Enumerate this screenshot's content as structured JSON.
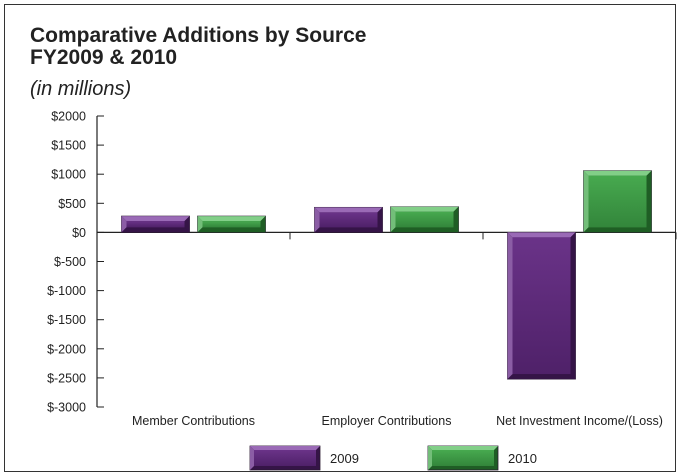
{
  "chart_data": {
    "type": "bar",
    "title": "Comparative Additions by Source",
    "title_line2": "FY2009 & 2010",
    "subtitle": "(in millions)",
    "categories": [
      "Member Contributions",
      "Employer Contributions",
      "Net Investment Income/(Loss)"
    ],
    "series": [
      {
        "name": "2009",
        "values": [
          280,
          430,
          -2520
        ],
        "color": "#5c2a7a"
      },
      {
        "name": "2010",
        "values": [
          280,
          440,
          1060
        ],
        "color": "#3e9a46"
      }
    ],
    "ylim": [
      -3000,
      2000
    ],
    "yticks": [
      2000,
      1500,
      1000,
      500,
      0,
      -500,
      -1000,
      -1500,
      -2000,
      -2500,
      -3000
    ],
    "ytick_labels": [
      "$2000",
      "$1500",
      "$1000",
      "$500",
      "$0",
      "$-500",
      "$-1000",
      "$-1500",
      "$-2000",
      "$-2500",
      "$-3000"
    ],
    "grid": false,
    "legend": "bottom"
  }
}
